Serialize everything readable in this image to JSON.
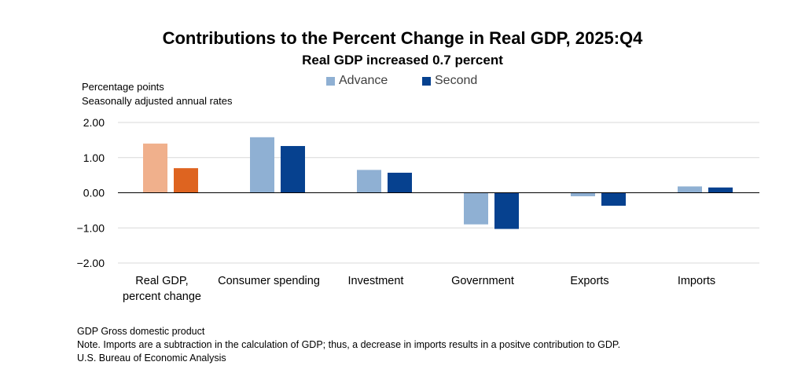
{
  "chart_data": {
    "type": "bar",
    "title": "Contributions to the Percent Change in Real GDP, 2025:Q4",
    "subtitle": "Real GDP increased 0.7 percent",
    "ylabel_lines": [
      "Percentage points",
      "Seasonally adjusted annual rates"
    ],
    "ylim": [
      -2.0,
      2.0
    ],
    "yticks": [
      "2.00",
      "1.00",
      "0.00",
      "−1.00",
      "−2.00"
    ],
    "ytick_values": [
      2,
      1,
      0,
      -1,
      -2
    ],
    "categories": [
      [
        "Real GDP,",
        "percent change"
      ],
      [
        "Consumer spending"
      ],
      [
        "Investment"
      ],
      [
        "Government"
      ],
      [
        "Exports"
      ],
      [
        "Imports"
      ]
    ],
    "series": [
      {
        "name": "Advance",
        "values": [
          1.4,
          1.58,
          0.65,
          -0.9,
          -0.1,
          0.18
        ]
      },
      {
        "name": "Second",
        "values": [
          0.7,
          1.33,
          0.57,
          -1.03,
          -0.37,
          0.15
        ]
      }
    ],
    "colors": {
      "advance": "#8fb0d3",
      "second": "#06418f",
      "gdp_advance": "#f0b08c",
      "gdp_second": "#de6420",
      "grid": "#d9d9d9",
      "zero_line": "#000000"
    }
  },
  "legend": {
    "advance": "Advance",
    "second": "Second"
  },
  "notes": [
    "GDP Gross domestic product",
    "Note. Imports are a subtraction in the calculation of GDP; thus, a decrease in imports results in a positve contribution to GDP.",
    "U.S. Bureau of Economic Analysis"
  ]
}
